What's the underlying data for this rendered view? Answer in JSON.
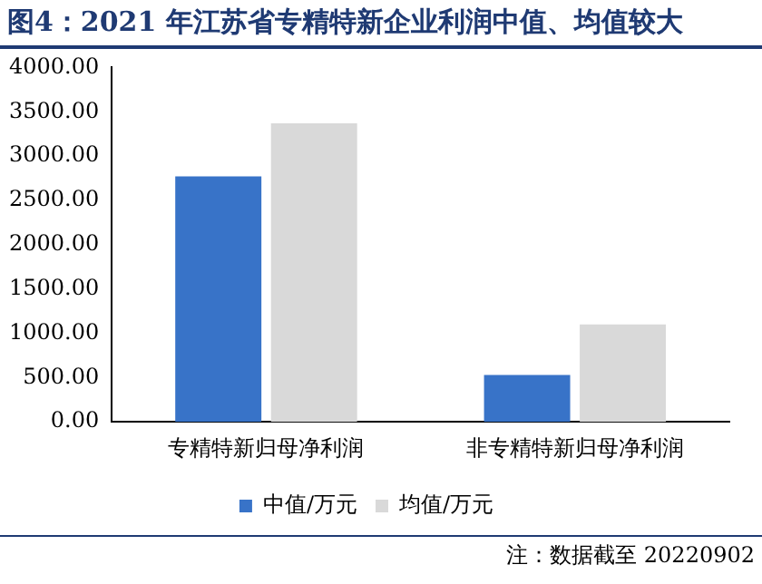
{
  "chart_data": {
    "type": "bar",
    "title": "图4：2021 年江苏省专精特新企业利润中值、均值较大",
    "categories": [
      "专精特新归母净利润",
      "非专精特新归母净利润"
    ],
    "series": [
      {
        "name": "中值/万元",
        "color": "#3873c8",
        "values": [
          2770,
          530
        ]
      },
      {
        "name": "均值/万元",
        "color": "#d9d9d9",
        "values": [
          3370,
          1100
        ]
      }
    ],
    "ylim": [
      0,
      4000
    ],
    "yticks": [
      {
        "value": 0,
        "label": "0.00"
      },
      {
        "value": 500,
        "label": "500.00"
      },
      {
        "value": 1000,
        "label": "1000.00"
      },
      {
        "value": 1500,
        "label": "1500.00"
      },
      {
        "value": 2000,
        "label": "2000.00"
      },
      {
        "value": 2500,
        "label": "2500.00"
      },
      {
        "value": 3000,
        "label": "3000.00"
      },
      {
        "value": 3500,
        "label": "3500.00"
      },
      {
        "value": 4000,
        "label": "4000.00"
      }
    ],
    "grid": false,
    "legend": "bottom",
    "annotations": [
      "注：数据截至 20220902"
    ]
  }
}
